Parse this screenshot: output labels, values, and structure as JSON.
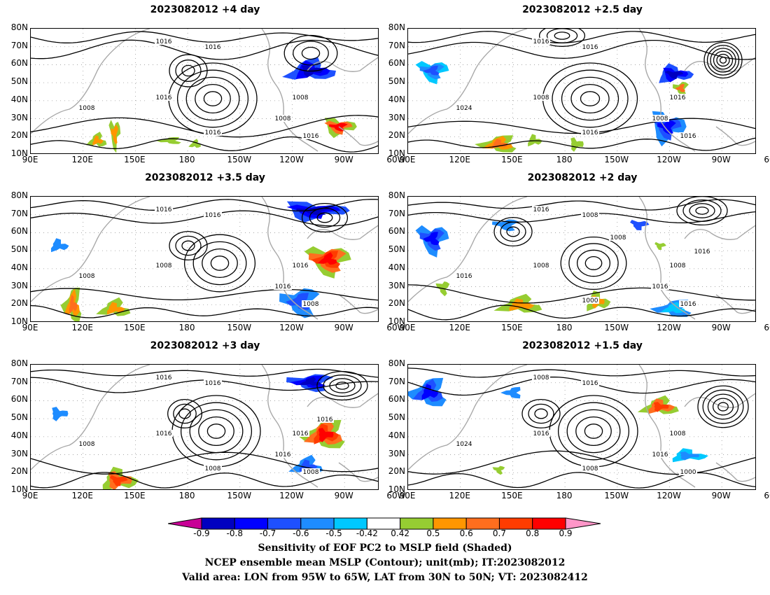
{
  "panels": [
    {
      "title": "2023082012  +4 day",
      "contour_labels": [
        "1016",
        "1016",
        "1016",
        "1008",
        "1008",
        "1008",
        "1016",
        "1016"
      ]
    },
    {
      "title": "2023082012  +2.5 day",
      "contour_labels": [
        "1016",
        "1016",
        "1008",
        "1016",
        "1024",
        "1008",
        "1016",
        "1016"
      ]
    },
    {
      "title": "2023082012  +3.5 day",
      "contour_labels": [
        "1016",
        "1016",
        "1008",
        "1016",
        "1008",
        "1016",
        "1008"
      ]
    },
    {
      "title": "2023082012  +2 day",
      "contour_labels": [
        "1016",
        "1008",
        "1008",
        "1008",
        "1016",
        "1016",
        "1016",
        "1000",
        "1016",
        "1008"
      ]
    },
    {
      "title": "2023082012  +3 day",
      "contour_labels": [
        "1016",
        "1016",
        "1016",
        "1016",
        "1008",
        "1016",
        "1008",
        "1008",
        "1016"
      ]
    },
    {
      "title": "2023082012  +1.5 day",
      "contour_labels": [
        "1008",
        "1016",
        "1016",
        "1008",
        "1024",
        "1016",
        "1000",
        "1008"
      ]
    }
  ],
  "lat_ticks": [
    "80N",
    "70N",
    "60N",
    "50N",
    "40N",
    "30N",
    "20N",
    "10N"
  ],
  "lon_ticks": [
    "90E",
    "120E",
    "150E",
    "180",
    "150W",
    "120W",
    "90W",
    "60W"
  ],
  "colorbar": {
    "labels": [
      "-0.9",
      "-0.8",
      "-0.7",
      "-0.6",
      "-0.5",
      "-0.42",
      "0.42",
      "0.5",
      "0.6",
      "0.7",
      "0.8",
      "0.9"
    ],
    "colors": [
      "#0000c0",
      "#0000ff",
      "#1e50ff",
      "#1e8cff",
      "#00c8ff",
      "#ffffff",
      "#96cd32",
      "#ff9600",
      "#ff6e1e",
      "#ff3c00",
      "#ff0000"
    ],
    "low_color": "#c80096",
    "high_color": "#ff96c8"
  },
  "caption": {
    "line1": "Sensitivity of EOF PC2 to MSLP field (Shaded)",
    "line2": "NCEP ensemble mean MSLP (Contour); unit(mb); IT:2023082012",
    "line3": "Valid area: LON from 95W to 65W, LAT from 30N to 50N; VT: 2023082412"
  }
}
